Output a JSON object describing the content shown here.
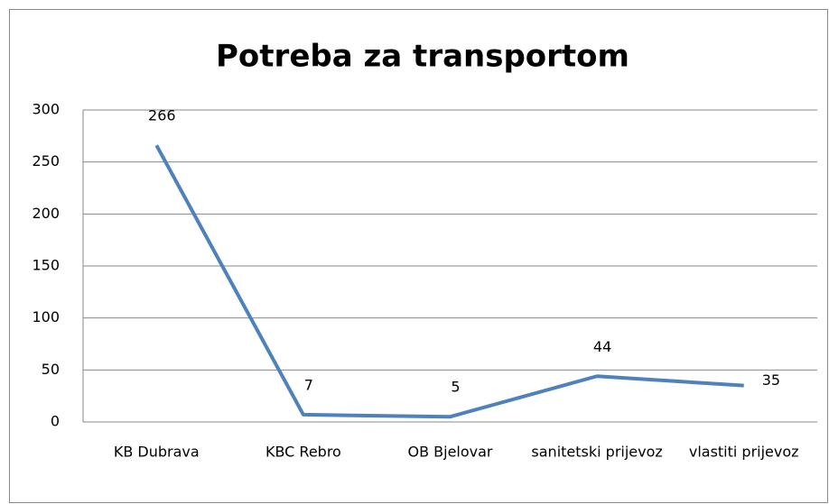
{
  "chart_data": {
    "type": "line",
    "title": "Potreba za transportom",
    "categories": [
      "KB Dubrava",
      "KBC Rebro",
      "OB Bjelovar",
      "sanitetski prijevoz",
      "vlastiti prijevoz"
    ],
    "series": [
      {
        "color": "#4f81bd",
        "values": [
          266,
          7,
          5,
          44,
          35
        ]
      }
    ],
    "ylim": [
      0,
      300
    ],
    "yticks": [
      0,
      50,
      100,
      150,
      200,
      250,
      300
    ],
    "grid": true
  }
}
